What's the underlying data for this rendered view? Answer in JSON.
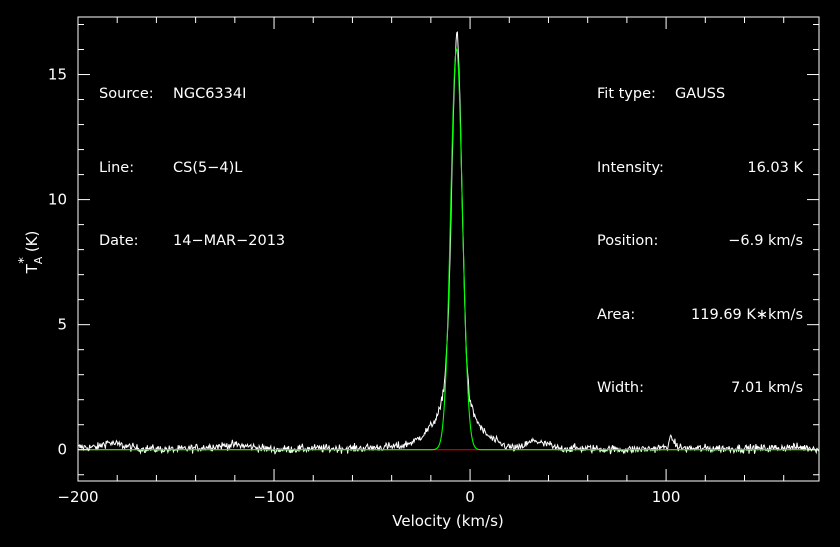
{
  "header_left": {
    "source_label": "Source:",
    "source_value": "NGC6334I",
    "line_label": "Line:",
    "line_value": "CS(5−4)L",
    "date_label": "Date:",
    "date_value": "14−MAR−2013"
  },
  "header_right": {
    "fit_type_label": "Fit type:",
    "fit_type_value": "GAUSS",
    "intensity_label": "Intensity:",
    "intensity_value": "16.03 K",
    "position_label": "Position:",
    "position_value": "−6.9 km/s",
    "area_label": "Area:",
    "area_value": "119.69 K∗km/s",
    "width_label": "Width:",
    "width_value": "7.01 km/s"
  },
  "colors": {
    "background": "#000000",
    "axes": "#ffffff",
    "spectrum": "#ffffff",
    "fit": "#00ff00",
    "baseline": "#ff0000"
  },
  "chart_data": {
    "type": "line",
    "xlabel": "Velocity (km/s)",
    "ylabel_main": "T",
    "ylabel_sup": "*",
    "ylabel_sub": "A",
    "ylabel_unit": "(K)",
    "xlim": [
      -200,
      178
    ],
    "ylim": [
      -1.25,
      17.3
    ],
    "x_ticks": [
      -200,
      -100,
      0,
      100
    ],
    "x_tick_labels": [
      "−200",
      "−100",
      "0",
      "100"
    ],
    "y_ticks": [
      0,
      5,
      10,
      15
    ],
    "y_tick_labels": [
      "0",
      "5",
      "10",
      "15"
    ],
    "grid": false,
    "series": [
      {
        "role": "spectrum",
        "x": [
          -200,
          -190,
          -185,
          -170,
          -150,
          -120,
          -100,
          -80,
          -60,
          -45,
          -35,
          -28,
          -24,
          -20,
          -17,
          -15,
          -13,
          -12,
          -11,
          -10,
          -9,
          -8,
          -7,
          -6.5,
          -6,
          -5,
          -4,
          -3,
          -2,
          -1,
          0,
          2,
          4,
          6,
          10,
          15,
          20,
          25,
          28,
          30,
          33,
          35,
          38,
          40,
          42,
          45,
          50,
          60,
          80,
          95,
          100,
          102,
          103,
          104,
          106,
          110,
          130,
          150,
          165,
          178
        ],
        "y": [
          0.1,
          0.1,
          0.3,
          0.05,
          0.0,
          0.2,
          0.0,
          0.05,
          0.05,
          0.1,
          0.15,
          0.35,
          0.6,
          0.95,
          1.3,
          1.7,
          2.7,
          3.9,
          5.6,
          8.3,
          11.8,
          14.8,
          16.5,
          16.7,
          16.0,
          13.6,
          9.9,
          6.6,
          4.1,
          2.7,
          1.9,
          1.4,
          1.1,
          0.8,
          0.5,
          0.25,
          0.1,
          0.05,
          0.2,
          0.25,
          0.4,
          0.3,
          0.2,
          0.25,
          0.1,
          0.05,
          0.05,
          0.05,
          0.0,
          0.05,
          0.1,
          0.35,
          0.5,
          0.3,
          0.1,
          0.05,
          0.05,
          0.05,
          0.1,
          0.05
        ]
      },
      {
        "role": "gaussian_fit",
        "amplitude": 16.03,
        "center": -6.9,
        "fwhm": 7.01
      },
      {
        "role": "baseline",
        "x": [
          -200,
          178
        ],
        "y": [
          0,
          0
        ]
      }
    ]
  }
}
